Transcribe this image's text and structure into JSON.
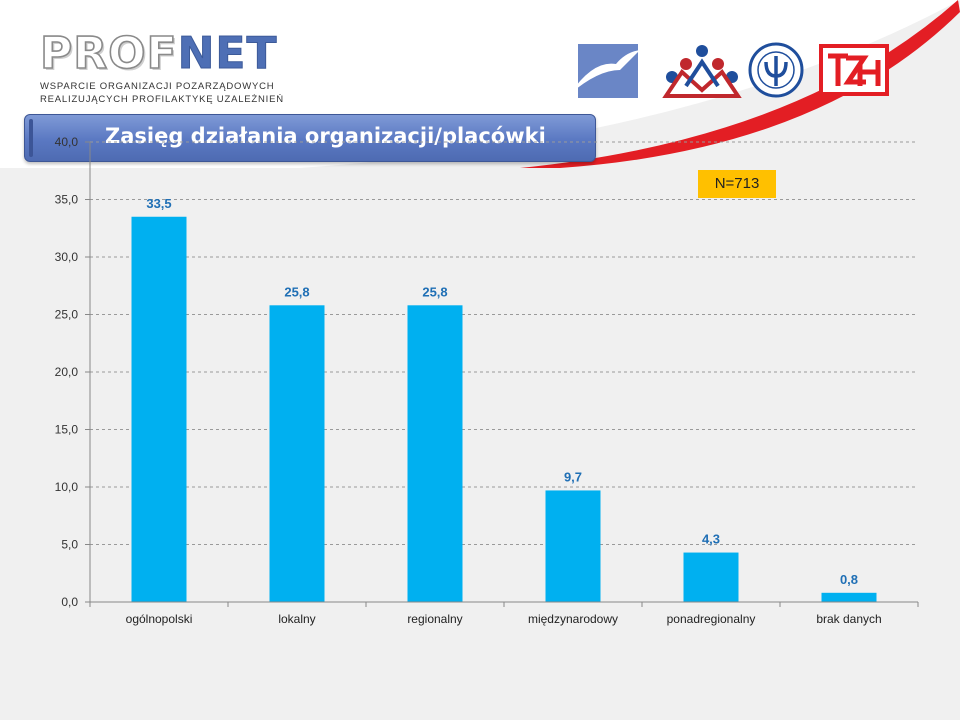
{
  "header": {
    "logo_prof": "PROF",
    "logo_net": "NET",
    "logo_subtitle_line1": "WSPARCIE ORGANIZACJI POZARZĄDOWYCH",
    "logo_subtitle_line2": "REALIZUJĄCYCH PROFILAKTYKĘ UZALEŻNIEŃ",
    "partner_logos": [
      "bird-logo-icon",
      "people-group-logo-icon",
      "psi-seal-logo-icon",
      "tzn-logo-icon"
    ]
  },
  "colors": {
    "bar": "#00b0f0",
    "title_bar": "#5a78c2",
    "badge": "#ffc000",
    "data_label": "#1f6fb5"
  },
  "title": "Zasięg działania organizacji/placówki",
  "badge": "N=713",
  "chart_data": {
    "type": "bar",
    "title": "Zasięg działania organizacji/placówki",
    "categories": [
      "ogólnopolski",
      "lokalny",
      "regionalny",
      "międzynarodowy",
      "ponadregionalny",
      "brak danych"
    ],
    "values": [
      33.5,
      25.8,
      25.8,
      9.7,
      4.3,
      0.8
    ],
    "value_labels": [
      "33,5",
      "25,8",
      "25,8",
      "9,7",
      "4,3",
      "0,8"
    ],
    "y_ticks": [
      "0,0",
      "5,0",
      "10,0",
      "15,0",
      "20,0",
      "25,0",
      "30,0",
      "35,0",
      "40,0"
    ],
    "ylim": [
      0,
      40
    ],
    "grid": true,
    "annotation": "N=713"
  }
}
